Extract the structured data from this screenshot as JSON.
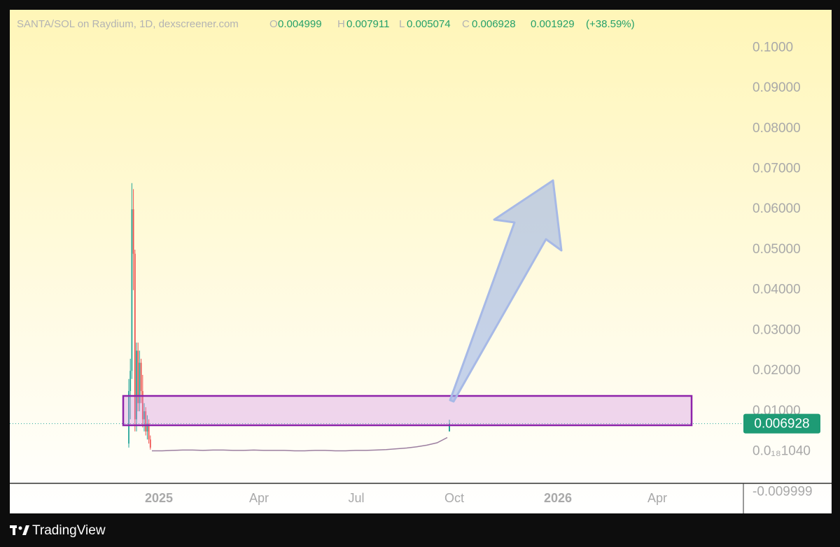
{
  "chart_data": {
    "type": "candlestick",
    "title": "SANTA/SOL on Raydium, 1D, dexscreener.com",
    "ohlc": {
      "open_label": "O",
      "open": 0.004999,
      "high_label": "H",
      "high": 0.007911,
      "low_label": "L",
      "low": 0.005074,
      "close_label": "C",
      "close": 0.006928,
      "change": 0.001929,
      "change_pct": {
        "value": 38.59,
        "label": "(+38.59%)"
      }
    },
    "categories": [
      "2025",
      "Apr",
      "Jul",
      "Oct",
      "2026",
      "Apr"
    ],
    "candles": [
      {
        "open": 0.002,
        "high": 0.018,
        "low": 0.001,
        "close": 0.015
      },
      {
        "open": 0.015,
        "high": 0.023,
        "low": 0.008,
        "close": 0.02
      },
      {
        "open": 0.02,
        "high": 0.0665,
        "low": 0.018,
        "close": 0.06
      },
      {
        "open": 0.06,
        "high": 0.065,
        "low": 0.04,
        "close": 0.049
      },
      {
        "open": 0.049,
        "high": 0.05,
        "low": 0.005,
        "close": 0.008
      },
      {
        "open": 0.008,
        "high": 0.027,
        "low": 0.005,
        "close": 0.025
      },
      {
        "open": 0.025,
        "high": 0.027,
        "low": 0.01,
        "close": 0.012
      },
      {
        "open": 0.012,
        "high": 0.025,
        "low": 0.01,
        "close": 0.022
      },
      {
        "open": 0.022,
        "high": 0.023,
        "low": 0.012,
        "close": 0.015
      },
      {
        "open": 0.015,
        "high": 0.019,
        "low": 0.006,
        "close": 0.008
      },
      {
        "open": 0.008,
        "high": 0.012,
        "low": 0.005,
        "close": 0.01
      },
      {
        "open": 0.01,
        "high": 0.011,
        "low": 0.004,
        "close": 0.005
      },
      {
        "open": 0.005,
        "high": 0.009,
        "low": 0.003,
        "close": 0.007
      },
      {
        "open": 0.007,
        "high": 0.008,
        "low": 0.002,
        "close": 0.003
      },
      {
        "open": 0.003,
        "high": 0.004,
        "low": 0.0005,
        "close": 0.001
      }
    ],
    "trail": [
      0.0002,
      0.0002,
      0.0003,
      0.0004,
      0.0004,
      0.0003,
      0.0004,
      0.0004,
      0.0003,
      0.0003,
      0.0004,
      0.0003,
      0.0003,
      0.0003,
      0.0002,
      0.0002,
      0.0003,
      0.0003,
      0.0002,
      0.0002,
      0.0003,
      0.0003,
      0.0004,
      0.0005,
      0.0007,
      0.0009,
      0.0012,
      0.0016,
      0.0022,
      0.0035
    ],
    "last_price": 0.006928,
    "up_color": "#26a69a",
    "down_color": "#ef5350",
    "ylim": [
      -0.0153,
      0.1094
    ],
    "yticks": [
      {
        "value": 0.1,
        "label": "0.1000"
      },
      {
        "value": 0.09,
        "label": "0.09000"
      },
      {
        "value": 0.08,
        "label": "0.08000"
      },
      {
        "value": 0.07,
        "label": "0.07000"
      },
      {
        "value": 0.06,
        "label": "0.06000"
      },
      {
        "value": 0.05,
        "label": "0.05000"
      },
      {
        "value": 0.04,
        "label": "0.04000"
      },
      {
        "value": 0.03,
        "label": "0.03000"
      },
      {
        "value": 0.02,
        "label": "0.02000"
      },
      {
        "value": 0.01,
        "label": "0.01000"
      },
      {
        "value": 1.04e-19,
        "label": "0.0₁₈1040"
      },
      -0.009999
    ],
    "brand": "TradingView"
  }
}
